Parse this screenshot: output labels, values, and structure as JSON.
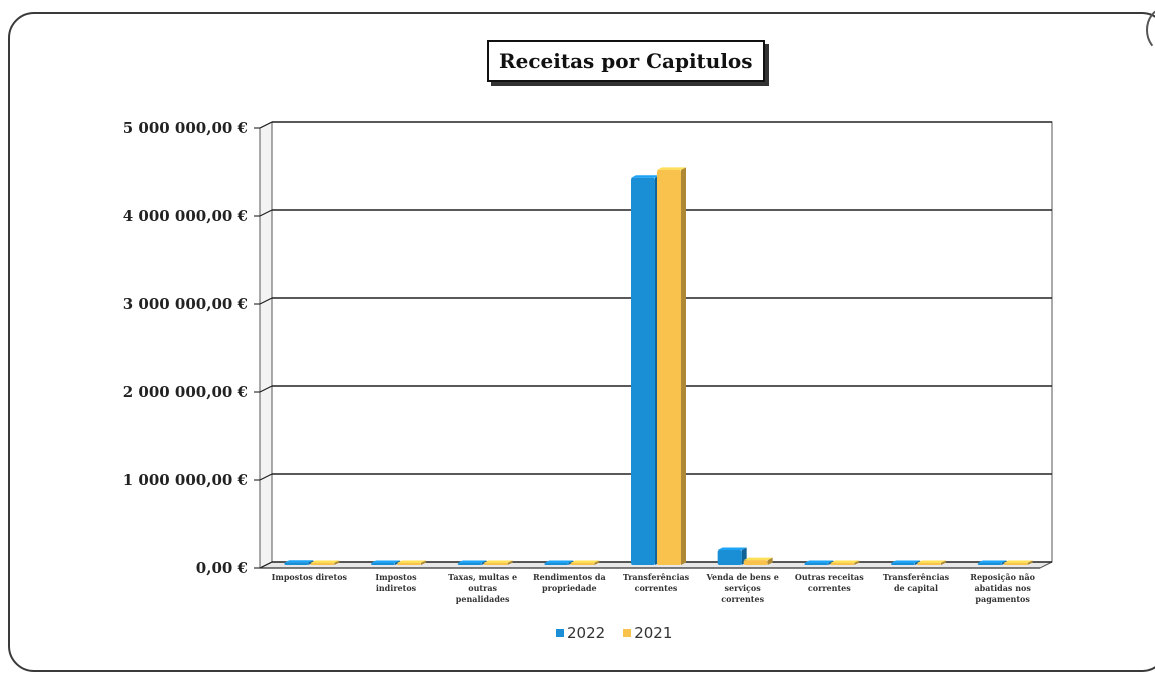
{
  "chart_data": {
    "type": "bar",
    "title": "Receitas por Capitulos",
    "categories": [
      "Impostos diretos",
      "Impostos indiretos",
      "Taxas, multas e outras penalidades",
      "Rendimentos da propriedade",
      "Transferências correntes",
      "Venda de bens e serviços correntes",
      "Outras receitas correntes",
      "Transferências de capital",
      "Reposição não abatidas nos pagamentos"
    ],
    "series": [
      {
        "name": "2022",
        "color": "#1a8fd6",
        "values": [
          25000,
          15000,
          20000,
          10000,
          4400000,
          170000,
          8000,
          3000,
          2000
        ]
      },
      {
        "name": "2021",
        "color": "#f9c24c",
        "values": [
          22000,
          12000,
          18000,
          8000,
          4490000,
          55000,
          6000,
          2000,
          1500
        ]
      }
    ],
    "ylim": [
      0,
      5000000
    ],
    "yticks": [
      0,
      1000000,
      2000000,
      3000000,
      4000000,
      5000000
    ],
    "ytick_labels": [
      "0,00 €",
      "1 000 000,00 €",
      "2 000 000,00 €",
      "3 000 000,00 €",
      "4 000 000,00 €",
      "5 000 000,00 €"
    ],
    "grid": true,
    "legend_position": "bottom"
  }
}
